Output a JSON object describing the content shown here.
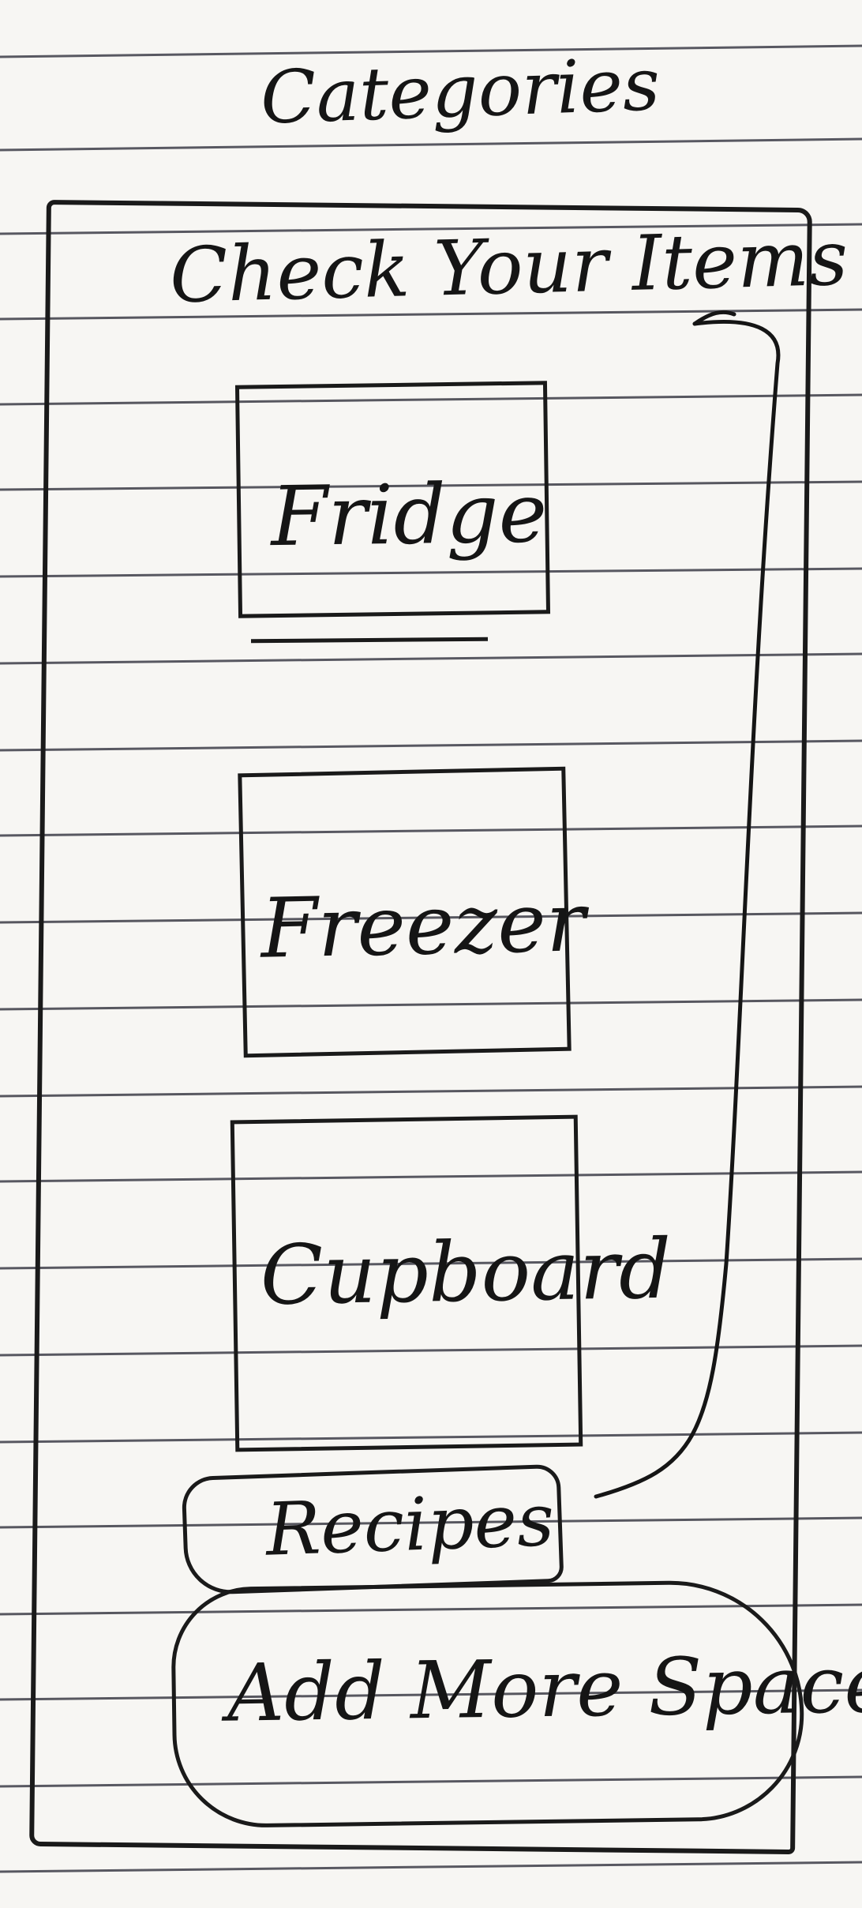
{
  "screen": {
    "title": "Categories"
  },
  "header": {
    "text": "Check Your Items"
  },
  "categories": [
    {
      "label": "Fridge"
    },
    {
      "label": "Freezer"
    },
    {
      "label": "Cupboard"
    }
  ],
  "buttons": {
    "recipes": "Recipes",
    "add_more_space": "Add More Space"
  }
}
